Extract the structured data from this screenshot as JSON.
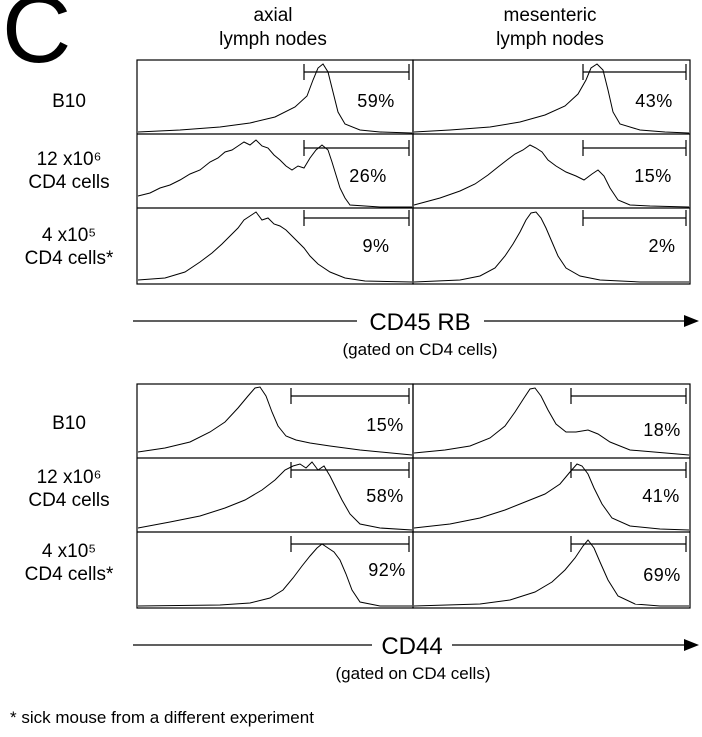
{
  "panel_letter": "C",
  "columns": [
    {
      "line1": "axial",
      "line2": "lymph nodes"
    },
    {
      "line1": "mesenteric",
      "line2": "lymph nodes"
    }
  ],
  "rows": [
    {
      "line1": "B10",
      "line2": ""
    },
    {
      "line1": "12  x10⁶",
      "line2": "CD4 cells"
    },
    {
      "line1": "4  x10⁵",
      "line2": "CD4 cells*"
    }
  ],
  "blocks": [
    {
      "axis_title": "CD45 RB",
      "axis_subtitle": "(gated on CD4 cells)",
      "percentages": [
        [
          "59%",
          "43%"
        ],
        [
          "26%",
          "15%"
        ],
        [
          "9%",
          "2%"
        ]
      ]
    },
    {
      "axis_title": "CD44",
      "axis_subtitle": "(gated on CD4 cells)",
      "percentages": [
        [
          "15%",
          "18%"
        ],
        [
          "58%",
          "41%"
        ],
        [
          "92%",
          "69%"
        ]
      ]
    }
  ],
  "footnote": "* sick mouse from a different experiment"
}
